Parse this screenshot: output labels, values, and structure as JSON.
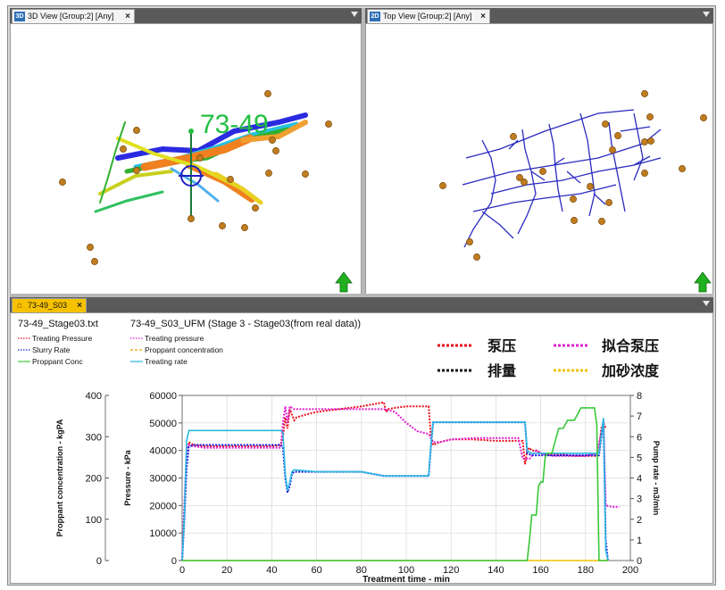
{
  "tabs": {
    "view3d": {
      "icon": "3D",
      "label": "3D View [Group:2] [Any]"
    },
    "top": {
      "icon": "2D",
      "label": "Top View [Group:2] [Any]"
    },
    "bottom": {
      "label": "73-49_S03"
    },
    "close_glyph": "×"
  },
  "view3d": {
    "well_label": "73-49"
  },
  "chart_header": {
    "file_title": "73-49_Stage03.txt",
    "chart_title": "73-49_S03_UFM (Stage 3 - Stage03(from real data))",
    "legend_left": [
      "Treating Pressure",
      "Slurry Rate",
      "Proppant Conc"
    ],
    "legend_mid": [
      "Treating pressure",
      "Proppant concentration",
      "Treating rate"
    ],
    "legend_cn": [
      "泵压",
      "拟合泵压",
      "排量",
      "加砂浓度"
    ]
  },
  "chart_data": {
    "type": "line",
    "xlabel": "Treatment time - min",
    "ylabel": "Pressure - kPa",
    "ylabel_left": "Proppant concentration - kgPA",
    "ylabel_right": "Pump rate - m3/min",
    "xlim": [
      0,
      200
    ],
    "ylim": [
      0,
      60000
    ],
    "ylim_left": [
      0,
      400
    ],
    "ylim_right": [
      0,
      8
    ],
    "xticks": [
      "0",
      "20",
      "40",
      "60",
      "80",
      "100",
      "120",
      "140",
      "160",
      "180",
      "200"
    ],
    "yticks": [
      "0",
      "10000",
      "20000",
      "30000",
      "40000",
      "50000",
      "60000"
    ],
    "yticks_left": [
      "0",
      "100",
      "200",
      "300",
      "400"
    ],
    "yticks_right": [
      "0",
      "1",
      "2",
      "3",
      "4",
      "5",
      "6",
      "7",
      "8"
    ],
    "grid": true,
    "series": [
      {
        "name": "泵压",
        "color": "#e8101c",
        "axis": "pressure",
        "x": [
          0,
          1,
          2,
          3,
          5,
          10,
          20,
          30,
          40,
          44,
          45,
          46,
          47,
          48,
          50,
          51,
          55,
          60,
          70,
          80,
          90,
          91,
          92,
          95,
          100,
          108,
          110,
          111,
          112,
          115,
          120,
          130,
          140,
          150,
          152,
          153,
          154,
          155,
          156,
          158,
          160,
          165,
          170,
          175,
          180,
          184,
          185,
          186,
          187,
          188,
          189
        ],
        "y": [
          0,
          20000,
          38000,
          43000,
          42000,
          41500,
          41500,
          41500,
          41500,
          42000,
          45000,
          52000,
          48000,
          55000,
          51000,
          52000,
          53000,
          54000,
          55000,
          56000,
          57500,
          54000,
          55000,
          55500,
          56000,
          56000,
          56000,
          45000,
          42000,
          43000,
          44000,
          44000,
          43500,
          43500,
          43500,
          35000,
          40000,
          41000,
          40000,
          40000,
          39000,
          38500,
          38500,
          38000,
          38000,
          38000,
          38000,
          39000,
          48000,
          50000,
          48000
        ]
      },
      {
        "name": "拟合泵压",
        "color": "#e020d0",
        "axis": "pressure",
        "x": [
          0,
          2,
          3,
          5,
          10,
          20,
          30,
          40,
          44,
          45,
          46,
          47,
          48,
          50,
          60,
          70,
          80,
          90,
          95,
          100,
          105,
          110,
          112,
          115,
          120,
          130,
          140,
          150,
          152,
          155,
          158,
          160,
          165,
          170,
          175,
          180,
          185,
          188,
          189,
          192,
          195
        ],
        "y": [
          0,
          40000,
          42000,
          41500,
          41000,
          41000,
          41000,
          41000,
          41000,
          50000,
          56000,
          50000,
          56000,
          55000,
          55000,
          55000,
          55000,
          55000,
          54000,
          50000,
          47000,
          46000,
          43000,
          43000,
          44000,
          44500,
          44500,
          44500,
          37000,
          37000,
          40000,
          39000,
          38000,
          38000,
          38000,
          38000,
          39000,
          50000,
          20000,
          19500,
          19500
        ]
      },
      {
        "name": "排量",
        "color": "#1a1ae0",
        "axis": "rate",
        "x": [
          0,
          1,
          2,
          3,
          5,
          20,
          40,
          44,
          45,
          46,
          47,
          48,
          49,
          50,
          60,
          70,
          80,
          90,
          100,
          110,
          111,
          112,
          120,
          130,
          140,
          150,
          153,
          154,
          156,
          160,
          165,
          170,
          175,
          180,
          184,
          186,
          188,
          189,
          190
        ],
        "y": [
          0,
          2,
          4.5,
          5.5,
          5.6,
          5.6,
          5.6,
          5.6,
          5.5,
          4,
          3.3,
          3.6,
          4.2,
          4.3,
          4.3,
          4.3,
          4.3,
          4.1,
          4.1,
          4.1,
          5.5,
          6.7,
          6.7,
          6.7,
          6.7,
          6.7,
          6.7,
          5.2,
          5.1,
          5.1,
          5.1,
          5.1,
          5.1,
          5.1,
          5.1,
          5.1,
          6.8,
          1,
          0
        ]
      },
      {
        "name": "Treating rate",
        "color": "#2ab8e0",
        "axis": "rate",
        "x": [
          0,
          1,
          2,
          3,
          5,
          20,
          40,
          44,
          45,
          46,
          47,
          48,
          49,
          50,
          60,
          70,
          80,
          90,
          100,
          110,
          111,
          112,
          120,
          130,
          140,
          150,
          153,
          154,
          156,
          160,
          165,
          170,
          175,
          180,
          184,
          186,
          188,
          189,
          190
        ],
        "y": [
          0,
          2.2,
          5.8,
          6.3,
          6.3,
          6.3,
          6.3,
          6.3,
          6.2,
          4.2,
          3.4,
          3.8,
          4.3,
          4.4,
          4.3,
          4.3,
          4.3,
          4.1,
          4.1,
          4.1,
          5.6,
          6.7,
          6.7,
          6.7,
          6.7,
          6.7,
          6.7,
          5.3,
          5.2,
          5.2,
          5.2,
          5.2,
          5.2,
          5.2,
          5.2,
          5.2,
          6.9,
          0.5,
          0
        ]
      },
      {
        "name": "加砂浓度",
        "color": "#f0c000",
        "axis": "proppant",
        "x": [
          0,
          150,
          155,
          156,
          158,
          160,
          162,
          165,
          170,
          175,
          180,
          183,
          185,
          186,
          187,
          190
        ],
        "y": [
          0,
          0,
          0,
          0,
          0,
          0,
          0,
          0,
          0,
          0,
          0,
          0,
          0,
          0,
          0,
          0
        ]
      },
      {
        "name": "Proppant Conc",
        "color": "#38c838",
        "axis": "proppant",
        "x": [
          0,
          154,
          155,
          156,
          158,
          159,
          160,
          161,
          162,
          163,
          165,
          167,
          168,
          170,
          172,
          175,
          177,
          178,
          180,
          182,
          184,
          185,
          186,
          187,
          190
        ],
        "y": [
          0,
          0,
          50,
          110,
          110,
          180,
          190,
          190,
          250,
          260,
          260,
          300,
          320,
          320,
          340,
          340,
          360,
          370,
          370,
          370,
          370,
          330,
          0,
          0,
          0
        ]
      }
    ]
  }
}
